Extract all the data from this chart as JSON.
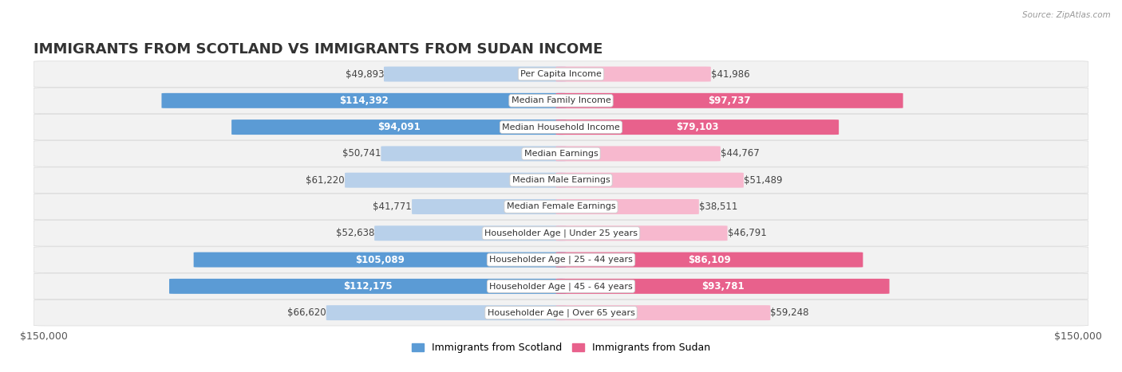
{
  "title": "IMMIGRANTS FROM SCOTLAND VS IMMIGRANTS FROM SUDAN INCOME",
  "source": "Source: ZipAtlas.com",
  "categories": [
    "Per Capita Income",
    "Median Family Income",
    "Median Household Income",
    "Median Earnings",
    "Median Male Earnings",
    "Median Female Earnings",
    "Householder Age | Under 25 years",
    "Householder Age | 25 - 44 years",
    "Householder Age | 45 - 64 years",
    "Householder Age | Over 65 years"
  ],
  "scotland_values": [
    49893,
    114392,
    94091,
    50741,
    61220,
    41771,
    52638,
    105089,
    112175,
    66620
  ],
  "sudan_values": [
    41986,
    97737,
    79103,
    44767,
    51489,
    38511,
    46791,
    86109,
    93781,
    59248
  ],
  "scotland_color_light": "#b8d0ea",
  "scotland_color_dark": "#5b9bd5",
  "sudan_color_light": "#f7b8ce",
  "sudan_color_dark": "#e8618c",
  "row_bg_color": "#f0f0f0",
  "row_border_color": "#dddddd",
  "max_val": 150000,
  "threshold": 75000,
  "legend_scotland": "Immigrants from Scotland",
  "legend_sudan": "Immigrants from Sudan",
  "title_fontsize": 13,
  "value_fontsize": 8.5,
  "cat_fontsize": 8,
  "axis_fontsize": 9
}
